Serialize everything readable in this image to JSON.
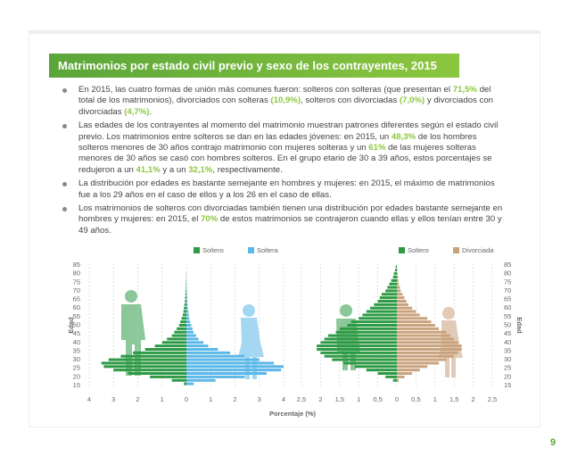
{
  "header": {
    "title": "Matrimonios por estado civil previo y sexo de los contrayentes, 2015"
  },
  "bullets": [
    [
      "En 2015, las cuatro formas de unión más comunes fueron: solteros con solteras (que presentan el ",
      "71,5%",
      " del total de los matrimonios), divorciados con solteras ",
      "(10,9%)",
      ", solteros con divorciadas ",
      "(7,0%)",
      " y divorciados con divorciadas ",
      "(4,7%)",
      "."
    ],
    [
      "Las edades de los contrayentes al momento del matrimonio muestran patrones diferentes según el estado civil previo. Los matrimonios entre solteros se dan en las edades jóvenes: en 2015, un ",
      "48,3%",
      " de los hombres solteros menores de 30 años contrajo matrimonio con mujeres solteras y un ",
      "61%",
      " de las mujeres solteras menores de 30 años se casó con hombres solteros. En el grupo etario de 30 a 39 años, estos porcentajes se redujeron a un ",
      "41,1%",
      " y a un ",
      "32,1%",
      ", respectivamente."
    ],
    [
      "La distribución por edades es bastante semejante en hombres y mujeres: en 2015, el máximo de matrimonios fue a los 29 años en el caso de ellos y a los 26 en el caso de ellas."
    ],
    [
      "Los matrimonios de solteros con divorciadas también tienen una distribución por edades bastante semejante en hombres y mujeres: en 2015, el ",
      "70%",
      " de estos matrimonios se contrajeron cuando ellas y ellos tenían entre 30 y 49 años."
    ]
  ],
  "page_number": "9",
  "x_axis_label": "Porcentaje (%)",
  "chart_data": [
    {
      "type": "pyramid",
      "y_label": "Edad",
      "y": [
        16,
        18,
        20,
        22,
        24,
        26,
        28,
        30,
        32,
        34,
        36,
        38,
        40,
        42,
        44,
        46,
        48,
        50,
        52,
        54,
        56,
        58,
        60,
        62,
        64,
        66,
        68,
        70,
        72,
        74,
        76,
        78,
        80,
        82,
        84
      ],
      "ylim": [
        14,
        86
      ],
      "yticks": [
        15,
        20,
        25,
        30,
        35,
        40,
        45,
        50,
        55,
        60,
        65,
        70,
        75,
        80,
        85
      ],
      "xlim": [
        -4.2,
        4.2
      ],
      "xticks": [
        {
          "value": -4,
          "label": "4"
        },
        {
          "value": -3,
          "label": "3"
        },
        {
          "value": -2,
          "label": "2"
        },
        {
          "value": -1,
          "label": "1"
        },
        0,
        1,
        2,
        3,
        4
      ],
      "series": [
        {
          "name": "Soltero",
          "color": "#2e9a45",
          "values": [
            0.1,
            0.6,
            1.5,
            2.4,
            3.0,
            3.4,
            3.5,
            3.2,
            2.7,
            2.2,
            1.7,
            1.3,
            1.0,
            0.8,
            0.6,
            0.5,
            0.4,
            0.3,
            0.25,
            0.2,
            0.15,
            0.12,
            0.1,
            0.08,
            0.06,
            0.05,
            0.04,
            0.03,
            0.02,
            0.02,
            0.01,
            0.01,
            0.01,
            0,
            0
          ]
        },
        {
          "name": "Soltera",
          "color": "#5bb8e8",
          "values": [
            0.3,
            1.2,
            2.4,
            3.3,
            3.9,
            4.0,
            3.6,
            3.0,
            2.4,
            1.8,
            1.3,
            0.9,
            0.7,
            0.5,
            0.4,
            0.3,
            0.25,
            0.2,
            0.15,
            0.12,
            0.1,
            0.08,
            0.06,
            0.05,
            0.04,
            0.03,
            0.02,
            0.02,
            0.01,
            0.01,
            0.01,
            0,
            0,
            0,
            0
          ]
        }
      ]
    },
    {
      "type": "pyramid",
      "y_label": "Edad",
      "y": [
        16,
        18,
        20,
        22,
        24,
        26,
        28,
        30,
        32,
        34,
        36,
        38,
        40,
        42,
        44,
        46,
        48,
        50,
        52,
        54,
        56,
        58,
        60,
        62,
        64,
        66,
        68,
        70,
        72,
        74,
        76,
        78,
        80,
        82,
        84
      ],
      "ylim": [
        14,
        86
      ],
      "yticks": [
        15,
        20,
        25,
        30,
        35,
        40,
        45,
        50,
        55,
        60,
        65,
        70,
        75,
        80,
        85
      ],
      "xlim": [
        -2.7,
        2.7
      ],
      "xticks": [
        {
          "value": -2.5,
          "label": "2,5"
        },
        {
          "value": -2,
          "label": "2"
        },
        {
          "value": -1.5,
          "label": "1,5"
        },
        {
          "value": -1,
          "label": "1"
        },
        {
          "value": -0.5,
          "label": "0,5"
        },
        0,
        {
          "value": 0.5,
          "label": "0,5"
        },
        1,
        {
          "value": 1.5,
          "label": "1,5"
        },
        2,
        {
          "value": 2.5,
          "label": "2,5"
        }
      ],
      "series": [
        {
          "name": "Soltero",
          "color": "#2e9a45",
          "values": [
            0,
            0.1,
            0.3,
            0.5,
            0.8,
            1.1,
            1.4,
            1.7,
            1.9,
            2.0,
            2.1,
            2.1,
            2.0,
            1.9,
            1.8,
            1.6,
            1.5,
            1.3,
            1.2,
            1.0,
            0.9,
            0.8,
            0.7,
            0.6,
            0.5,
            0.45,
            0.4,
            0.3,
            0.25,
            0.2,
            0.15,
            0.1,
            0.08,
            0.05,
            0.03
          ]
        },
        {
          "name": "Divorciada",
          "color": "#c9a27e",
          "values": [
            0,
            0.05,
            0.2,
            0.4,
            0.6,
            0.8,
            1.1,
            1.3,
            1.5,
            1.6,
            1.7,
            1.7,
            1.6,
            1.5,
            1.4,
            1.3,
            1.1,
            1.0,
            0.9,
            0.8,
            0.6,
            0.5,
            0.4,
            0.3,
            0.25,
            0.2,
            0.15,
            0.1,
            0.08,
            0.05,
            0.04,
            0.03,
            0.02,
            0.01,
            0
          ]
        }
      ]
    }
  ]
}
